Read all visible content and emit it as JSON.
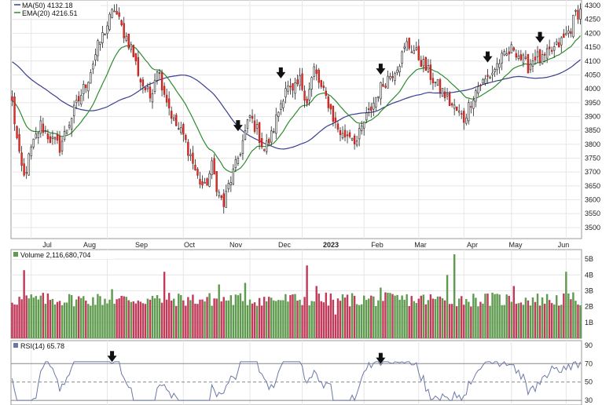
{
  "chart_data": [
    {
      "type": "candlestick",
      "panel": "price",
      "legend": [
        {
          "label": "MA(50) 4132.18",
          "color": "#3a3f8f"
        },
        {
          "label": "EMA(20) 4216.51",
          "color": "#2e8b2e"
        }
      ],
      "ylim": [
        3460,
        4320
      ],
      "y_ticks": [
        3500,
        3550,
        3600,
        3650,
        3700,
        3750,
        3800,
        3850,
        3900,
        3950,
        4000,
        4050,
        4100,
        4150,
        4200,
        4250,
        4300
      ],
      "x_labels": [
        "Jul",
        "Aug",
        "Sep",
        "Oct",
        "Nov",
        "Dec",
        "2023",
        "Feb",
        "Mar",
        "Apr",
        "May",
        "Jun"
      ],
      "anchors": [
        [
          0,
          3950
        ],
        [
          3,
          3750
        ],
        [
          5,
          3680
        ],
        [
          8,
          3780
        ],
        [
          12,
          3870
        ],
        [
          16,
          3820
        ],
        [
          20,
          3790
        ],
        [
          24,
          3880
        ],
        [
          28,
          3960
        ],
        [
          32,
          4040
        ],
        [
          36,
          4150
        ],
        [
          40,
          4230
        ],
        [
          43,
          4290
        ],
        [
          46,
          4220
        ],
        [
          50,
          4150
        ],
        [
          54,
          4030
        ],
        [
          58,
          3970
        ],
        [
          61,
          4080
        ],
        [
          64,
          3990
        ],
        [
          68,
          3880
        ],
        [
          72,
          3830
        ],
        [
          75,
          3760
        ],
        [
          78,
          3680
        ],
        [
          81,
          3640
        ],
        [
          84,
          3720
        ],
        [
          87,
          3620
        ],
        [
          89,
          3580
        ],
        [
          91,
          3650
        ],
        [
          94,
          3720
        ],
        [
          97,
          3810
        ],
        [
          100,
          3900
        ],
        [
          103,
          3850
        ],
        [
          106,
          3780
        ],
        [
          109,
          3830
        ],
        [
          112,
          3920
        ],
        [
          115,
          4010
        ],
        [
          118,
          3980
        ],
        [
          121,
          4030
        ],
        [
          124,
          3960
        ],
        [
          127,
          4070
        ],
        [
          130,
          4000
        ],
        [
          133,
          3950
        ],
        [
          136,
          3870
        ],
        [
          139,
          3830
        ],
        [
          142,
          3840
        ],
        [
          145,
          3810
        ],
        [
          148,
          3880
        ],
        [
          151,
          3930
        ],
        [
          154,
          3990
        ],
        [
          157,
          4030
        ],
        [
          160,
          4060
        ],
        [
          163,
          4100
        ],
        [
          166,
          4160
        ],
        [
          169,
          4140
        ],
        [
          172,
          4100
        ],
        [
          175,
          4060
        ],
        [
          178,
          4020
        ],
        [
          181,
          3990
        ],
        [
          184,
          3950
        ],
        [
          187,
          3920
        ],
        [
          190,
          3890
        ],
        [
          193,
          3960
        ],
        [
          196,
          4010
        ],
        [
          199,
          4030
        ],
        [
          202,
          4060
        ],
        [
          205,
          4100
        ],
        [
          208,
          4120
        ],
        [
          211,
          4150
        ],
        [
          214,
          4110
        ],
        [
          217,
          4080
        ],
        [
          220,
          4120
        ],
        [
          223,
          4100
        ],
        [
          226,
          4130
        ],
        [
          229,
          4150
        ],
        [
          232,
          4180
        ],
        [
          235,
          4220
        ],
        [
          237,
          4270
        ],
        [
          239,
          4280
        ]
      ],
      "volume": {
        "label": "Volume 2,116,680,704",
        "ylim": [
          0,
          5.6
        ],
        "y_ticks": [
          "1B",
          "2B",
          "3B",
          "4B",
          "5B"
        ],
        "spikes": [
          [
            5,
            4.3
          ],
          [
            42,
            3.1
          ],
          [
            64,
            4.2
          ],
          [
            87,
            3.4
          ],
          [
            98,
            3.5
          ],
          [
            124,
            4.6
          ],
          [
            128,
            3.3
          ],
          [
            155,
            3.2
          ],
          [
            183,
            4.0
          ],
          [
            186,
            5.3
          ],
          [
            233,
            4.2
          ],
          [
            136,
            1.5
          ],
          [
            211,
            3.3
          ]
        ]
      },
      "rsi": {
        "label": "RSI(14) 65.78",
        "ylim": [
          25,
          95
        ],
        "y_ticks": [
          30,
          50,
          70,
          90
        ],
        "levels": [
          30,
          70
        ],
        "midline": 50,
        "peaks": [
          [
            42,
            70
          ],
          [
            155,
            68
          ]
        ]
      },
      "price_arrows": [
        95,
        113,
        155,
        200,
        222
      ],
      "rsi_arrows": [
        42,
        155
      ]
    }
  ]
}
